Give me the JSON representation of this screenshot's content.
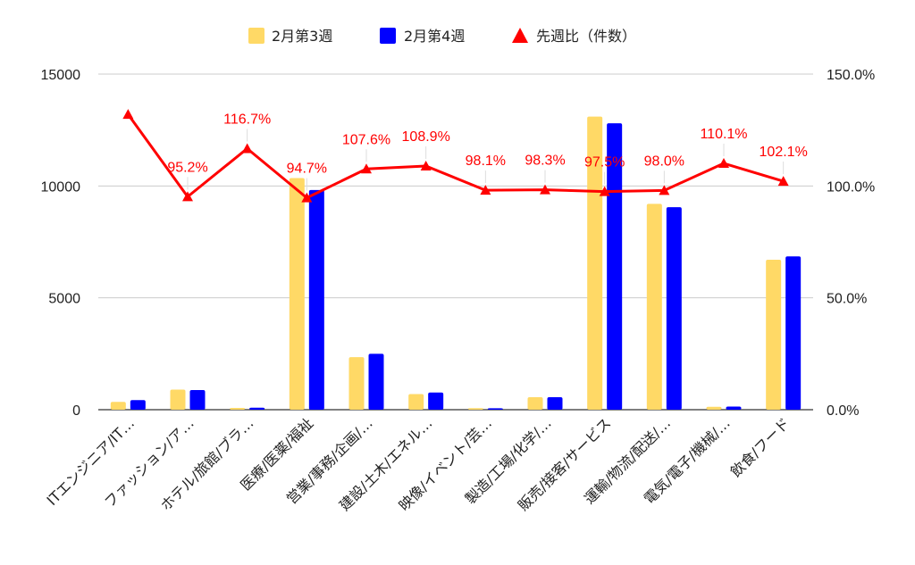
{
  "chart_data": {
    "type": "bar",
    "categories": [
      "ITエンジニア/IT…",
      "ファッション/ア…",
      "ホテル/旅館/ブラ…",
      "医療/医薬/福祉",
      "営業/事務/企画/…",
      "建設/土木/エネル…",
      "映像/イベント/芸…",
      "製造/工場/化学/…",
      "販売/接客/サービス",
      "運輸/物流/配送/…",
      "電気/電子/機械/…",
      "飲食/フード"
    ],
    "series": [
      {
        "name": "2月第3週",
        "type": "bar",
        "axis": "left",
        "color": "#ffd966",
        "values": [
          350,
          900,
          80,
          10350,
          2350,
          700,
          70,
          560,
          13100,
          9200,
          130,
          6700
        ]
      },
      {
        "name": "2月第4週",
        "type": "bar",
        "axis": "left",
        "color": "#0000ff",
        "values": [
          430,
          880,
          90,
          9820,
          2500,
          770,
          65,
          560,
          12800,
          9050,
          140,
          6850
        ]
      },
      {
        "name": "先週比（件数）",
        "type": "line",
        "axis": "right",
        "color": "#ff0000",
        "marker": "triangle",
        "values": [
          132,
          95.2,
          116.7,
          94.7,
          107.6,
          108.9,
          98.1,
          98.3,
          97.5,
          98.0,
          110.1,
          102.1
        ],
        "labels": [
          "",
          "95.2%",
          "116.7%",
          "94.7%",
          "107.6%",
          "108.9%",
          "98.1%",
          "98.3%",
          "97.5%",
          "98.0%",
          "110.1%",
          "102.1%"
        ]
      }
    ],
    "yleft": {
      "lim": [
        0,
        15000
      ],
      "ticks": [
        "0",
        "5000",
        "10000",
        "15000"
      ],
      "tick_values": [
        0,
        5000,
        10000,
        15000
      ]
    },
    "yright": {
      "lim": [
        0,
        150
      ],
      "ticks": [
        "0.0%",
        "50.0%",
        "100.0%",
        "150.0%"
      ],
      "tick_values": [
        0,
        50,
        100,
        150
      ]
    },
    "legend_position": "top-center",
    "grid": true
  }
}
